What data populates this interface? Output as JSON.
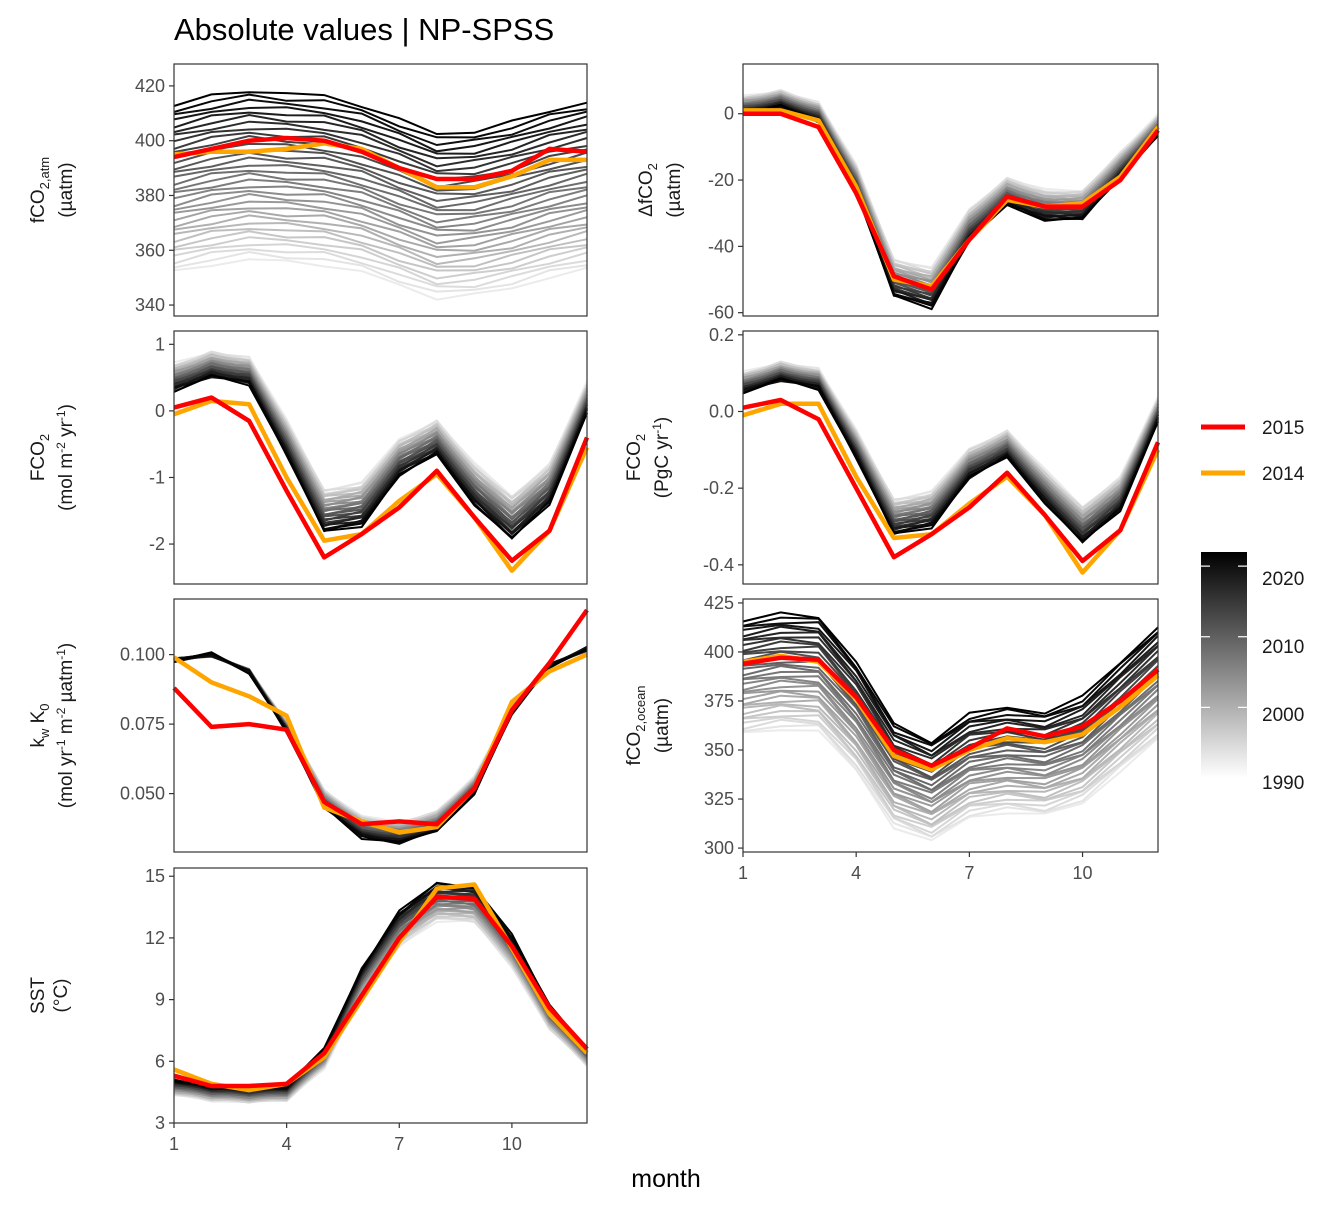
{
  "title": "Absolute values | NP-SPSS",
  "x_axis_label": "month",
  "legend": {
    "lines": [
      {
        "label": "2015",
        "color": "#ff0000"
      },
      {
        "label": "2014",
        "color": "#ffa500"
      }
    ],
    "colorbar": {
      "labels": [
        "2020",
        "2010",
        "2000",
        "1990"
      ],
      "range": [
        1990,
        2022
      ],
      "from_color": "#ffffff",
      "to_color": "#000000"
    }
  },
  "chart_data": [
    {
      "type": "line",
      "id": "fco2atm",
      "ylabel": [
        "fCO2,atm",
        "(µatm)"
      ],
      "ylim": [
        336,
        428
      ],
      "yticks": [
        340,
        360,
        380,
        400,
        420
      ],
      "xticks": [],
      "x": [
        1,
        2,
        3,
        4,
        5,
        6,
        7,
        8,
        9,
        10,
        11,
        12
      ],
      "years": [
        1990,
        2022
      ],
      "background_start": [
        352,
        413
      ],
      "background_shape": [
        0,
        3,
        5,
        4,
        3,
        0,
        -5,
        -10,
        -9,
        -6,
        -2,
        1
      ],
      "series": [
        {
          "name": "2015",
          "color": "#ff0000",
          "values": [
            394,
            397,
            400,
            401,
            400,
            396,
            390,
            386,
            386,
            389,
            397,
            396
          ]
        },
        {
          "name": "2014",
          "color": "#ffa500",
          "values": [
            395,
            396,
            396,
            397,
            399,
            397,
            390,
            383,
            383,
            387,
            393,
            393
          ]
        }
      ]
    },
    {
      "type": "line",
      "id": "dfco2",
      "ylabel": [
        "ΔfCO2",
        "(µatm)"
      ],
      "ylim": [
        -61,
        15
      ],
      "yticks": [
        -60,
        -40,
        -20,
        0
      ],
      "xticks": [],
      "x": [
        1,
        2,
        3,
        4,
        5,
        6,
        7,
        8,
        9,
        10,
        11,
        12
      ],
      "years": [
        1990,
        2022
      ],
      "background_start": [
        5,
        0
      ],
      "background_shape": [
        0,
        2,
        -2,
        -22,
        -52,
        -55,
        -36,
        -26,
        -30,
        -30,
        -18,
        -6
      ],
      "series": [
        {
          "name": "2015",
          "color": "#ff0000",
          "values": [
            0,
            0,
            -4,
            -24,
            -49,
            -53,
            -38,
            -25,
            -28,
            -28,
            -20,
            -5
          ]
        },
        {
          "name": "2014",
          "color": "#ffa500",
          "values": [
            1,
            1,
            -2,
            -22,
            -50,
            -52,
            -38,
            -26,
            -28,
            -27,
            -19,
            -4
          ]
        }
      ]
    },
    {
      "type": "line",
      "id": "fco2_mol",
      "ylabel": [
        "FCO2",
        "(mol m-2 yr-1)"
      ],
      "ylim": [
        -2.6,
        1.2
      ],
      "yticks": [
        -2,
        -1,
        0,
        1
      ],
      "xticks": [],
      "x": [
        1,
        2,
        3,
        4,
        5,
        6,
        7,
        8,
        9,
        10,
        11,
        12
      ],
      "years": [
        1990,
        2022
      ],
      "background_start": [
        0.7,
        0.3
      ],
      "background_shape": [
        0,
        0.2,
        0.1,
        -0.9,
        -2.0,
        -1.9,
        -1.2,
        -0.9,
        -1.6,
        -2.1,
        -1.6,
        -0.3
      ],
      "series": [
        {
          "name": "2015",
          "color": "#ff0000",
          "values": [
            0.05,
            0.2,
            -0.15,
            -1.2,
            -2.2,
            -1.85,
            -1.45,
            -0.9,
            -1.6,
            -2.25,
            -1.8,
            -0.4
          ]
        },
        {
          "name": "2014",
          "color": "#ffa500",
          "values": [
            -0.05,
            0.15,
            0.1,
            -1.0,
            -1.95,
            -1.85,
            -1.35,
            -0.95,
            -1.6,
            -2.4,
            -1.8,
            -0.55
          ]
        }
      ]
    },
    {
      "type": "line",
      "id": "fco2_pgc",
      "ylabel": [
        "FCO2",
        "(PgC yr-1)"
      ],
      "ylim": [
        -0.45,
        0.21
      ],
      "yticks": [
        -0.4,
        -0.2,
        0.0,
        0.2
      ],
      "xticks": [],
      "x": [
        1,
        2,
        3,
        4,
        5,
        6,
        7,
        8,
        9,
        10,
        11,
        12
      ],
      "years": [
        1990,
        2022
      ],
      "background_start": [
        0.1,
        0.05
      ],
      "background_shape": [
        0,
        0.03,
        0.01,
        -0.16,
        -0.35,
        -0.33,
        -0.21,
        -0.16,
        -0.27,
        -0.37,
        -0.29,
        -0.07
      ],
      "series": [
        {
          "name": "2015",
          "color": "#ff0000",
          "values": [
            0.01,
            0.03,
            -0.02,
            -0.2,
            -0.38,
            -0.32,
            -0.25,
            -0.16,
            -0.27,
            -0.39,
            -0.31,
            -0.08
          ]
        },
        {
          "name": "2014",
          "color": "#ffa500",
          "values": [
            -0.01,
            0.02,
            0.02,
            -0.17,
            -0.33,
            -0.32,
            -0.24,
            -0.17,
            -0.27,
            -0.42,
            -0.31,
            -0.1
          ]
        }
      ]
    },
    {
      "type": "line",
      "id": "kwk0",
      "ylabel": [
        "kw K0",
        "(mol yr-1 m-2 µatm-1)"
      ],
      "ylim": [
        0.029,
        0.12
      ],
      "yticks": [
        0.05,
        0.075,
        0.1
      ],
      "ytick_labels": [
        "0.050",
        "0.075",
        "0.100"
      ],
      "xticks": [],
      "x": [
        1,
        2,
        3,
        4,
        5,
        6,
        7,
        8,
        9,
        10,
        11,
        12
      ],
      "years": [
        1990,
        2022
      ],
      "background_start": [
        0.098,
        0.098
      ],
      "background_shape": [
        0,
        0.002,
        -0.004,
        -0.024,
        -0.05,
        -0.06,
        -0.062,
        -0.058,
        -0.045,
        -0.018,
        -0.002,
        0.004
      ],
      "series": [
        {
          "name": "2015",
          "color": "#ff0000",
          "values": [
            0.088,
            0.074,
            0.075,
            0.073,
            0.047,
            0.039,
            0.04,
            0.039,
            0.052,
            0.08,
            0.097,
            0.116
          ]
        },
        {
          "name": "2014",
          "color": "#ffa500",
          "values": [
            0.099,
            0.09,
            0.085,
            0.078,
            0.045,
            0.04,
            0.036,
            0.038,
            0.052,
            0.083,
            0.094,
            0.1
          ]
        }
      ]
    },
    {
      "type": "line",
      "id": "fco2ocean",
      "ylabel": [
        "fCO2,ocean",
        "(µatm)"
      ],
      "ylim": [
        298,
        427
      ],
      "yticks": [
        300,
        325,
        350,
        375,
        400,
        425
      ],
      "xticks": [
        1,
        4,
        7,
        10
      ],
      "x": [
        1,
        2,
        3,
        4,
        5,
        6,
        7,
        8,
        9,
        10,
        11,
        12
      ],
      "years": [
        1990,
        2022
      ],
      "background_start": [
        358,
        416
      ],
      "background_shape": [
        0,
        3,
        2,
        -20,
        -50,
        -58,
        -45,
        -42,
        -44,
        -37,
        -20,
        -3
      ],
      "series": [
        {
          "name": "2015",
          "color": "#ff0000",
          "values": [
            394,
            397,
            396,
            377,
            350,
            342,
            351,
            361,
            357,
            362,
            375,
            391
          ]
        },
        {
          "name": "2014",
          "color": "#ffa500",
          "values": [
            395,
            398,
            395,
            376,
            347,
            340,
            350,
            356,
            354,
            358,
            372,
            388
          ]
        }
      ]
    },
    {
      "type": "line",
      "id": "sst",
      "ylabel": [
        "SST",
        "(°C)"
      ],
      "ylim": [
        3,
        15.4
      ],
      "yticks": [
        3,
        6,
        9,
        12,
        15
      ],
      "xticks": [
        1,
        4,
        7,
        10
      ],
      "x": [
        1,
        2,
        3,
        4,
        5,
        6,
        7,
        8,
        9,
        10,
        11,
        12
      ],
      "years": [
        1990,
        2022
      ],
      "background_start": [
        4.4,
        5.1
      ],
      "background_shape": [
        0,
        -0.3,
        -0.4,
        -0.3,
        1.4,
        5.1,
        7.7,
        9.0,
        8.9,
        6.6,
        3.4,
        1.5
      ],
      "series": [
        {
          "name": "2015",
          "color": "#ff0000",
          "values": [
            5.3,
            4.8,
            4.8,
            4.9,
            6.4,
            9.2,
            12.0,
            14.0,
            13.9,
            11.6,
            8.6,
            6.6
          ]
        },
        {
          "name": "2014",
          "color": "#ffa500",
          "values": [
            5.6,
            4.9,
            4.6,
            4.9,
            6.2,
            9.0,
            11.8,
            14.4,
            14.6,
            11.5,
            8.3,
            6.4
          ]
        }
      ]
    }
  ]
}
